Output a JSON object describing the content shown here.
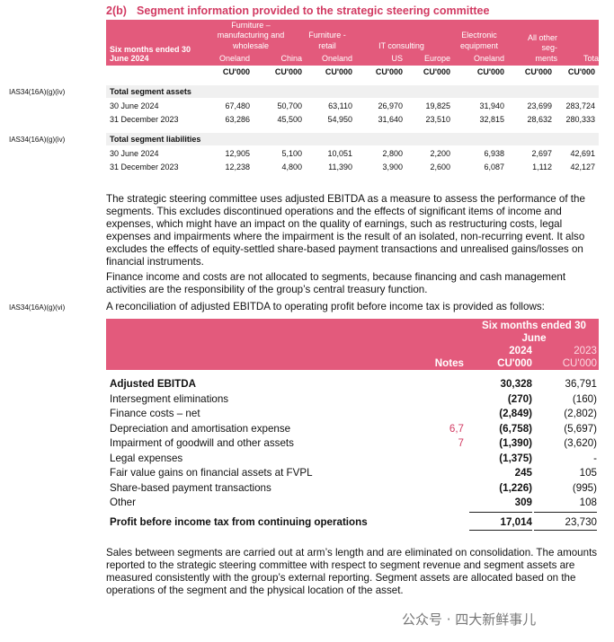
{
  "heading": {
    "number": "2(b)",
    "title": "Segment information provided to the strategic steering committee"
  },
  "segment_table": {
    "period_label": [
      "Six months ended 30",
      "June 2024"
    ],
    "groups": [
      {
        "name": [
          "Furniture –",
          "manufacturing and",
          "wholesale"
        ],
        "subs": [
          "Oneland",
          "China"
        ]
      },
      {
        "name": [
          "Furniture -",
          "retail"
        ],
        "subs": [
          "Oneland"
        ]
      },
      {
        "name": [
          "IT consulting"
        ],
        "subs": [
          "US",
          "Europe"
        ]
      },
      {
        "name": [
          "Electronic",
          "equipment"
        ],
        "subs": [
          "Oneland"
        ]
      },
      {
        "name": [
          "All other",
          "seg-",
          "ments"
        ]
      },
      {
        "name": [
          "Total"
        ]
      }
    ],
    "units": [
      "CU'000",
      "CU'000",
      "CU'000",
      "CU'000",
      "CU'000",
      "CU'000",
      "CU'000",
      "CU'000"
    ],
    "sections": [
      {
        "ref": "IAS34(16A)(g)(iv)",
        "title": "Total segment assets",
        "rows": [
          {
            "label": "30 June 2024",
            "values": [
              "67,480",
              "50,700",
              "63,110",
              "26,970",
              "19,825",
              "31,940",
              "23,699",
              "283,724"
            ]
          },
          {
            "label": "31 December 2023",
            "values": [
              "63,286",
              "45,500",
              "54,950",
              "31,640",
              "23,510",
              "32,815",
              "28,632",
              "280,333"
            ]
          }
        ]
      },
      {
        "ref": "IAS34(16A)(g)(iv)",
        "title": "Total segment liabilities",
        "rows": [
          {
            "label": "30 June 2024",
            "values": [
              "12,905",
              "5,100",
              "10,051",
              "2,800",
              "2,200",
              "6,938",
              "2,697",
              "42,691"
            ]
          },
          {
            "label": "31 December 2023",
            "values": [
              "12,238",
              "4,800",
              "11,390",
              "3,900",
              "2,600",
              "6,087",
              "1,112",
              "42,127"
            ]
          }
        ]
      }
    ]
  },
  "paragraphs": [
    "The strategic steering committee uses adjusted EBITDA as a measure to assess the performance of the segments. This excludes discontinued operations and the effects of significant items of income and expenses, which might have an impact on the quality of earnings, such as restructuring costs, legal expenses and impairments where the impairment is the result of an isolated, non-recurring event. It also excludes the effects of equity-settled share-based payment transactions and unrealised gains/losses on financial instruments.",
    "Finance income and costs are not allocated to segments, because financing and cash management activities are the responsibility of the group’s central treasury function."
  ],
  "reconciliation": {
    "ref": "IAS34(16A)(g)(vi)",
    "intro": "A reconciliation of adjusted EBITDA to operating profit before income tax is provided as follows:",
    "period": "Six months ended 30 June",
    "notes_header": "Notes",
    "years": [
      "2024",
      "2023"
    ],
    "units": [
      "CU'000",
      "CU'000"
    ],
    "rows": [
      {
        "label": "Adjusted EBITDA",
        "values": [
          "30,328",
          "36,791"
        ]
      },
      {
        "label": "Intersegment eliminations",
        "values": [
          "(270)",
          "(160)"
        ]
      },
      {
        "label": "Finance costs – net",
        "values": [
          "(2,849)",
          "(2,802)"
        ]
      },
      {
        "label": "Depreciation and amortisation expense",
        "notes": "6,7",
        "values": [
          "(6,758)",
          "(5,697)"
        ]
      },
      {
        "label": "Impairment of goodwill and other assets",
        "notes": "7",
        "values": [
          "(1,390)",
          "(3,620)"
        ]
      },
      {
        "label": "Legal expenses",
        "values": [
          "(1,375)",
          "-"
        ]
      },
      {
        "label": "Fair value gains on financial assets at FVPL",
        "values": [
          "245",
          "105"
        ]
      },
      {
        "label": "Share-based payment transactions",
        "values": [
          "(1,226)",
          "(995)"
        ]
      },
      {
        "label": "Other",
        "values": [
          "309",
          "108"
        ]
      }
    ],
    "total": {
      "label": "Profit before income tax from continuing operations",
      "values": [
        "17,014",
        "23,730"
      ]
    }
  },
  "closing_paragraph": "Sales between segments are carried out at arm’s length and are eliminated on consolidation. The amounts reported to the strategic steering committee with respect to segment revenue and segment assets are measured consistently with the group’s external reporting. Segment assets are allocated based on the operations of the segment and the physical location of the asset.",
  "watermark": "公众号 · 四大新鲜事儿"
}
